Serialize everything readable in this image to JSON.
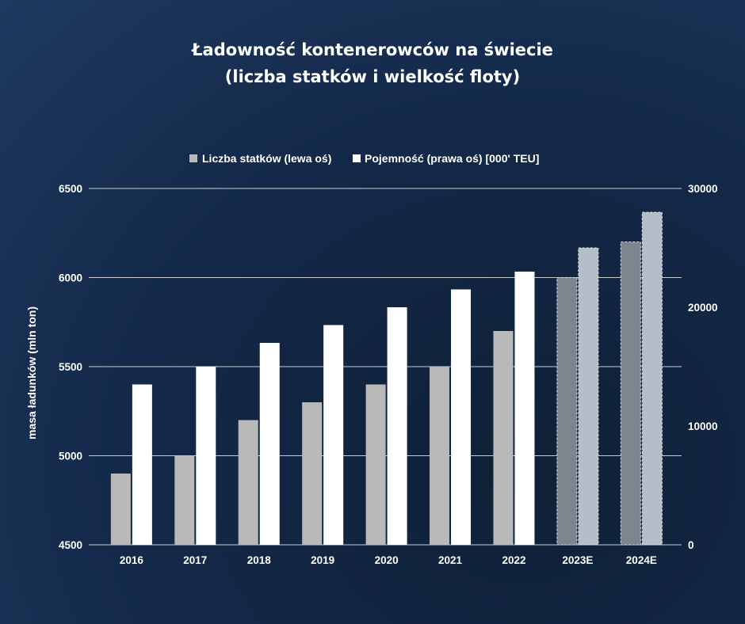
{
  "colors": {
    "left_series": "#b9b9b9",
    "right_series": "#ffffff",
    "left_forecast": "#7d858e",
    "right_forecast": "#b4bec8",
    "grid": "#c7ccd3"
  },
  "chart_data": {
    "type": "bar",
    "title_line1": "Ładowność kontenerowców na świecie",
    "title_line2": "(liczba statków i wielkość floty)",
    "ylabel": "masa ładunków (mln ton)",
    "ylabel_right": "",
    "xlabel": "",
    "legend_position": "top",
    "grid": true,
    "categories": [
      "2016",
      "2017",
      "2018",
      "2019",
      "2020",
      "2021",
      "2022",
      "2023E",
      "2024E"
    ],
    "forecast_categories": [
      "2023E",
      "2024E"
    ],
    "ylim": [
      4500,
      6500
    ],
    "yticks": [
      "6500",
      "6000",
      "5500",
      "5000",
      "4500"
    ],
    "ylim_right": [
      0,
      30000
    ],
    "yticks_right": [
      "30000",
      "20000",
      "10000",
      "0"
    ],
    "series": [
      {
        "name": "Liczba statków (lewa oś)",
        "axis": "left",
        "values": [
          4900,
          5000,
          5200,
          5300,
          5400,
          5500,
          5700,
          6000,
          6200
        ]
      },
      {
        "name": "Pojemność (prawa oś) [000' TEU]",
        "axis": "right",
        "values": [
          13500,
          15000,
          17000,
          18500,
          20000,
          21500,
          23000,
          25000,
          28000
        ]
      }
    ]
  }
}
